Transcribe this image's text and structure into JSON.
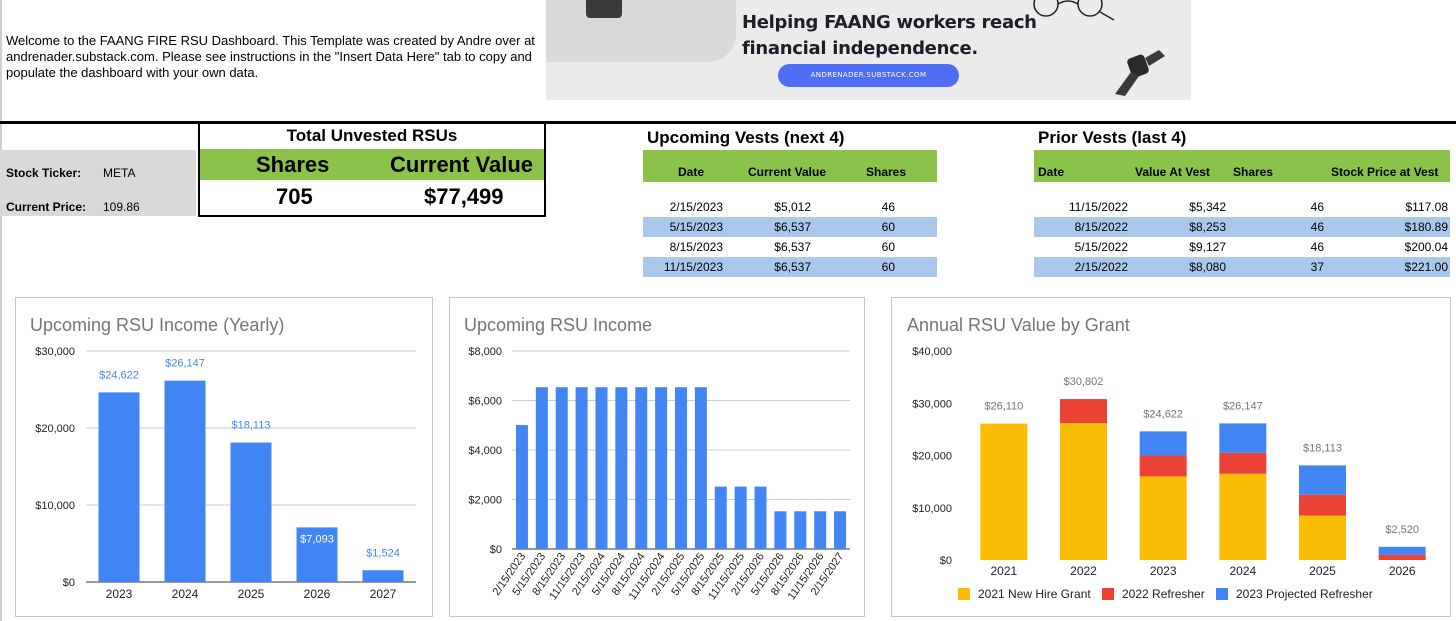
{
  "welcome_text": "Welcome to the FAANG FIRE RSU Dashboard. This Template was created by Andre over at andrenader.substack.com. Please see instructions in the \"Insert Data Here\" tab to copy and populate the dashboard with your own data.",
  "banner": {
    "headline_line1": "Helping FAANG workers reach",
    "headline_line2": "financial independence.",
    "url": "ANDRENADER.SUBSTACK.COM"
  },
  "ticker": {
    "ticker_label": "Stock Ticker:",
    "ticker_value": "META",
    "price_label": "Current Price:",
    "price_value": "109.86"
  },
  "unvested": {
    "title": "Total Unvested RSUs",
    "shares_label": "Shares",
    "value_label": "Current Value",
    "shares": "705",
    "value": "$77,499"
  },
  "upcoming_vests": {
    "title": "Upcoming Vests (next 4)",
    "headers": [
      "Date",
      "Current Value",
      "Shares"
    ],
    "rows": [
      [
        "2/15/2023",
        "$5,012",
        "46"
      ],
      [
        "5/15/2023",
        "$6,537",
        "60"
      ],
      [
        "8/15/2023",
        "$6,537",
        "60"
      ],
      [
        "11/15/2023",
        "$6,537",
        "60"
      ]
    ]
  },
  "prior_vests": {
    "title": "Prior Vests (last 4)",
    "headers": [
      "Date",
      "Value At Vest",
      "Shares",
      "Stock Price at Vest"
    ],
    "rows": [
      [
        "11/15/2022",
        "$5,342",
        "46",
        "$117.08"
      ],
      [
        "8/15/2022",
        "$8,253",
        "46",
        "$180.89"
      ],
      [
        "5/15/2022",
        "$9,127",
        "46",
        "$200.04"
      ],
      [
        "2/15/2022",
        "$8,080",
        "37",
        "$221.00"
      ]
    ]
  },
  "colors": {
    "green": "#8bc34a",
    "blue_row": "#a9c8ec",
    "bar_blue": "#4285f4",
    "bar_yellow": "#fbbc04",
    "bar_red": "#ea4335",
    "label_blue": "#4285f4",
    "label_gray": "#757575"
  },
  "chart_data": [
    {
      "type": "bar",
      "title": "Upcoming RSU Income (Yearly)",
      "categories": [
        "2023",
        "2024",
        "2025",
        "2026",
        "2027"
      ],
      "values": [
        24622,
        26147,
        18113,
        7093,
        1524
      ],
      "data_labels": [
        "$24,622",
        "$26,147",
        "$18,113",
        "$7,093",
        "$1,524"
      ],
      "yticks": [
        "$0",
        "$10,000",
        "$20,000",
        "$30,000"
      ],
      "ylim": [
        0,
        30000
      ],
      "grid": true
    },
    {
      "type": "bar",
      "title": "Upcoming RSU Income",
      "categories": [
        "2/15/2023",
        "5/15/2023",
        "8/15/2023",
        "11/15/2023",
        "2/15/2024",
        "5/15/2024",
        "8/15/2024",
        "11/15/2024",
        "2/15/2025",
        "5/15/2025",
        "8/15/2025",
        "11/15/2025",
        "2/15/2026",
        "5/15/2026",
        "8/15/2026",
        "11/15/2026",
        "2/15/2027"
      ],
      "values": [
        5012,
        6537,
        6537,
        6537,
        6537,
        6537,
        6537,
        6537,
        6537,
        6537,
        2520,
        2520,
        2520,
        1524,
        1524,
        1524,
        1524
      ],
      "yticks": [
        "$0",
        "$2,000",
        "$4,000",
        "$6,000",
        "$8,000"
      ],
      "ylim": [
        0,
        8000
      ],
      "grid": true
    },
    {
      "type": "bar",
      "stacked": true,
      "title": "Annual RSU Value by Grant",
      "categories": [
        "2021",
        "2022",
        "2023",
        "2024",
        "2025",
        "2026"
      ],
      "series": [
        {
          "name": "2021 New Hire Grant",
          "values": [
            26110,
            26200,
            16000,
            16500,
            8500,
            0
          ]
        },
        {
          "name": "2022 Refresher",
          "values": [
            0,
            4602,
            4000,
            4000,
            4000,
            1000
          ]
        },
        {
          "name": "2023 Projected Refresher",
          "values": [
            0,
            0,
            4622,
            5647,
            5613,
            1520
          ]
        }
      ],
      "totals": [
        "$26,110",
        "$30,802",
        "$24,622",
        "$26,147",
        "$18,113",
        "$2,520"
      ],
      "yticks": [
        "$0",
        "$10,000",
        "$20,000",
        "$30,000",
        "$40,000"
      ],
      "ylim": [
        0,
        40000
      ],
      "legend_position": "bottom",
      "grid": false
    }
  ]
}
